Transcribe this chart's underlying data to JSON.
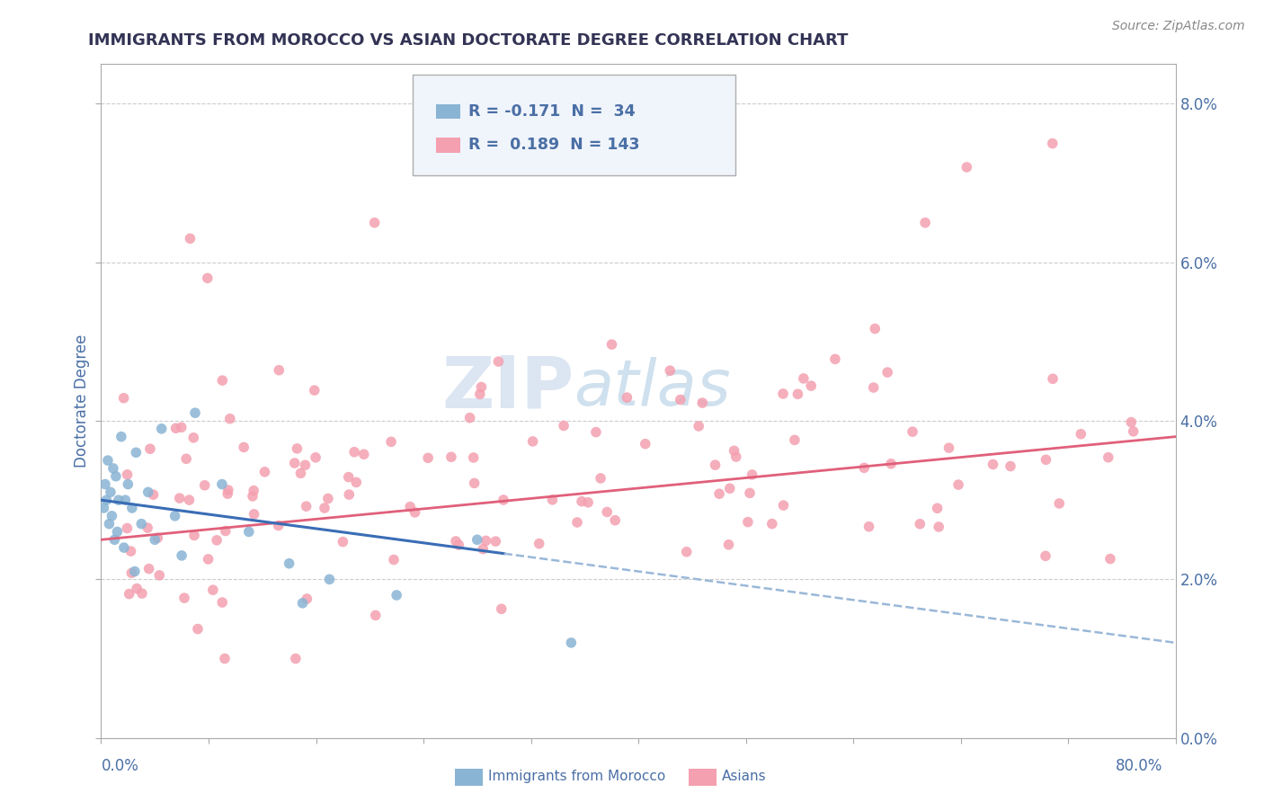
{
  "title": "IMMIGRANTS FROM MOROCCO VS ASIAN DOCTORATE DEGREE CORRELATION CHART",
  "source": "Source: ZipAtlas.com",
  "ylabel": "Doctorate Degree",
  "legend_r_morocco": "-0.171",
  "legend_n_morocco": "34",
  "legend_r_asians": "0.189",
  "legend_n_asians": "143",
  "blue_scatter_color": "#8ab4d4",
  "pink_scatter_color": "#f4a0b0",
  "blue_line_solid_color": "#3a6db5",
  "blue_line_dash_color": "#9ab8d8",
  "pink_line_color": "#e0607a",
  "watermark_zip_color": "#b8c8e8",
  "watermark_atlas_color": "#a8c8e0",
  "background_color": "#ffffff",
  "title_color": "#333355",
  "axis_label_color": "#4a6fa5",
  "legend_text_color": "#4a6fa5",
  "grid_color": "#cccccc",
  "xlim": [
    0,
    80
  ],
  "ylim": [
    0,
    8.5
  ],
  "ytick_vals": [
    0,
    2,
    4,
    6,
    8
  ],
  "ytick_labels": [
    "0.0%",
    "2.0%",
    "4.0%",
    "6.0%",
    "8.0%"
  ]
}
